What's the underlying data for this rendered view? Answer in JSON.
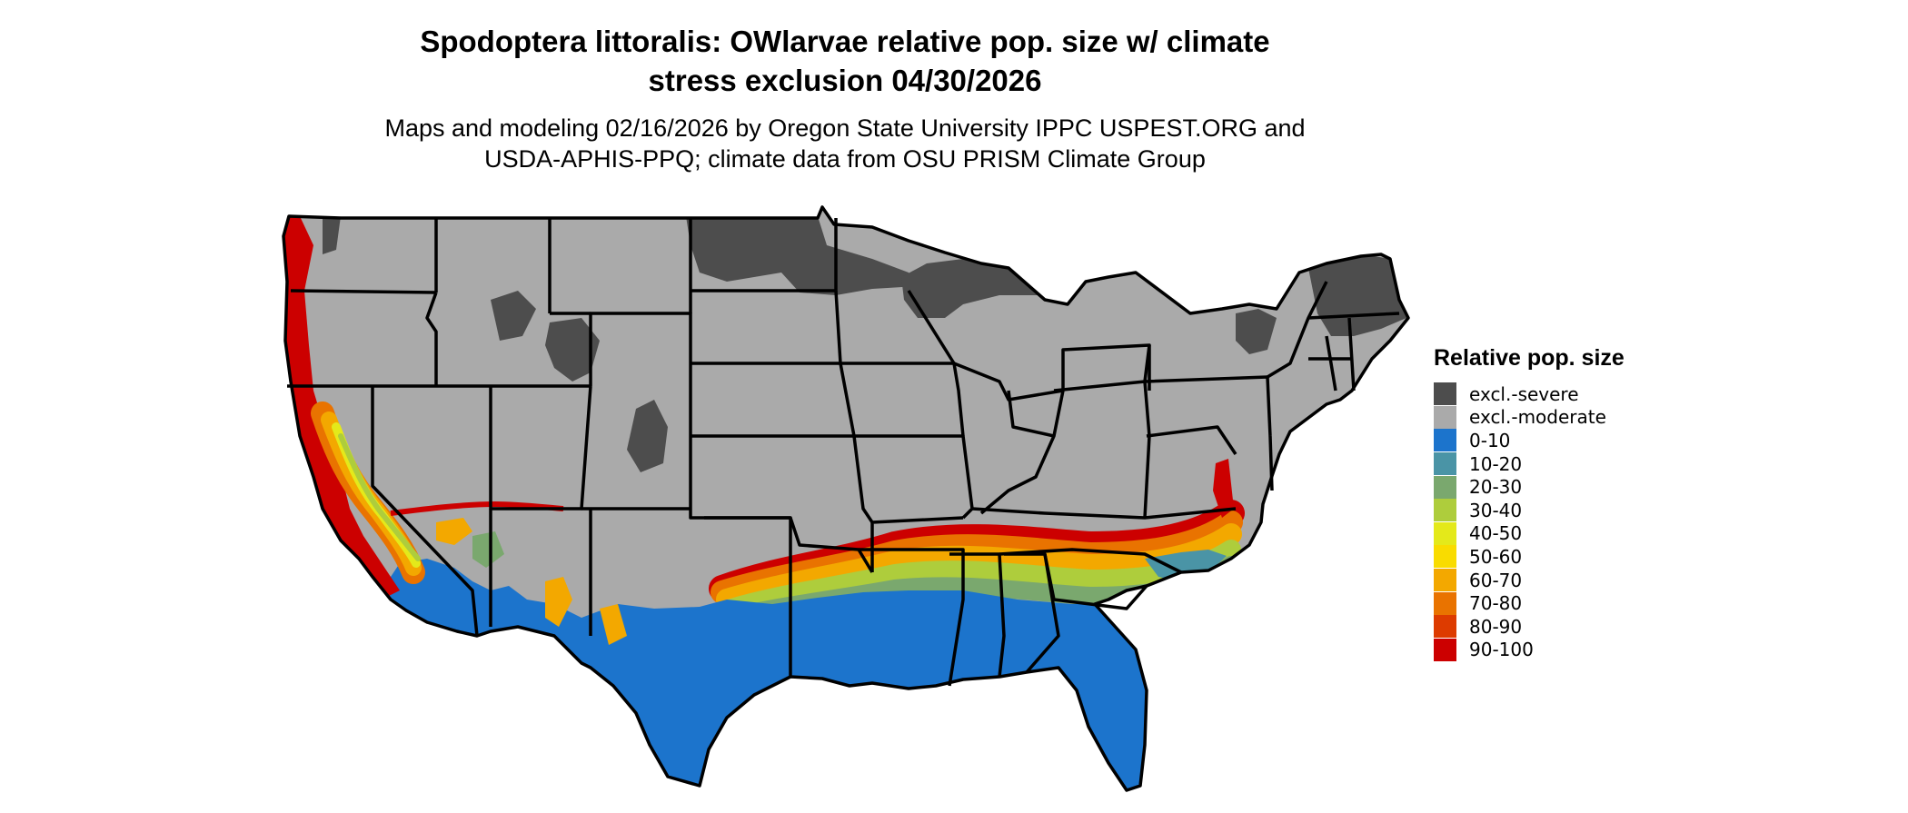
{
  "title": {
    "line1": "Spodoptera littoralis: OWlarvae relative pop. size w/ climate",
    "line2": "stress exclusion 04/30/2026"
  },
  "subtitle": {
    "line1": "Maps and modeling 02/16/2026 by Oregon State University IPPC USPEST.ORG and",
    "line2": "USDA-APHIS-PPQ; climate data from OSU PRISM Climate Group"
  },
  "legend": {
    "title": "Relative pop. size",
    "items": [
      {
        "label": "excl.-severe",
        "color": "#4d4d4d"
      },
      {
        "label": "excl.-moderate",
        "color": "#aaaaaa"
      },
      {
        "label": "0-10",
        "color": "#1c74cc"
      },
      {
        "label": "10-20",
        "color": "#4a94a6"
      },
      {
        "label": "20-30",
        "color": "#7aa86e"
      },
      {
        "label": "30-40",
        "color": "#aecd3c"
      },
      {
        "label": "40-50",
        "color": "#e4e91a"
      },
      {
        "label": "50-60",
        "color": "#f9dc00"
      },
      {
        "label": "60-70",
        "color": "#f3a800"
      },
      {
        "label": "70-80",
        "color": "#e97300"
      },
      {
        "label": "80-90",
        "color": "#dd3b00"
      },
      {
        "label": "90-100",
        "color": "#cc0000"
      }
    ]
  }
}
